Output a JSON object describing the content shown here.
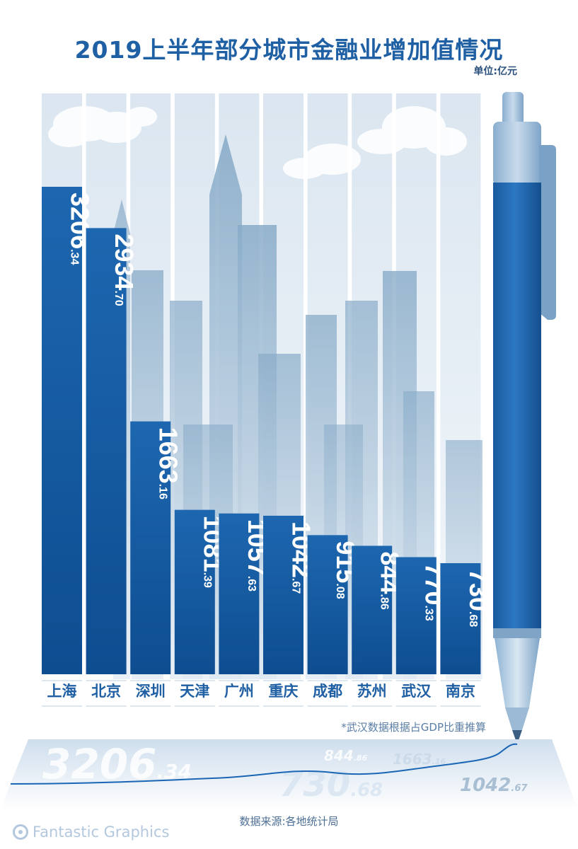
{
  "title": "2019上半年部分城市金融业增加值情况",
  "unit_label": "单位:亿元",
  "footnote": "*武汉数据根据占GDP比重推算",
  "source": "数据来源:各地统计局",
  "brand": "Fantastic Graphics",
  "colors": {
    "title": "#1f5fa3",
    "bar_top": "#1c64ad",
    "bar_bottom": "#0f4f93",
    "sky_column": "#e5edf5",
    "building": "#8fb0cb",
    "label": "#1f5fa3"
  },
  "chart_data": {
    "type": "bar",
    "title": "2019上半年部分城市金融业增加值情况",
    "ylabel": "单位:亿元",
    "categories": [
      "上海",
      "北京",
      "深圳",
      "天津",
      "广州",
      "重庆",
      "成都",
      "苏州",
      "武汉",
      "南京"
    ],
    "values": [
      3206.34,
      2934.7,
      1663.16,
      1081.39,
      1057.63,
      1042.67,
      915.08,
      844.86,
      770.33,
      730.68
    ],
    "value_labels": [
      {
        "int": "3206",
        "dec": ".34"
      },
      {
        "int": "2934",
        "dec": ".70"
      },
      {
        "int": "1663",
        "dec": ".16"
      },
      {
        "int": "1081",
        "dec": ".39"
      },
      {
        "int": "1057",
        "dec": ".63"
      },
      {
        "int": "1042",
        "dec": ".67"
      },
      {
        "int": "915",
        "dec": ".08"
      },
      {
        "int": "844",
        "dec": ".86"
      },
      {
        "int": "770",
        "dec": ".33"
      },
      {
        "int": "730",
        "dec": ".68"
      }
    ],
    "ylim": [
      0,
      3206.34
    ],
    "grid": false
  },
  "reflection_numbers": [
    {
      "int": "3206",
      "dec": ".34"
    },
    {
      "int": "844",
      "dec": ".86"
    },
    {
      "int": "1663",
      "dec": ".16"
    },
    {
      "int": "730",
      "dec": ".68"
    },
    {
      "int": "1042",
      "dec": ".67"
    }
  ]
}
